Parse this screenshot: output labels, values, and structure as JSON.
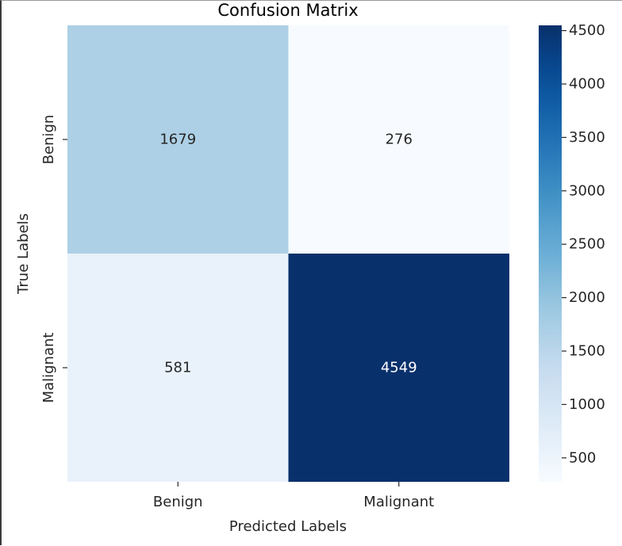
{
  "chart_data": {
    "type": "heatmap",
    "title": "Confusion Matrix",
    "xlabel": "Predicted Labels",
    "ylabel": "True Labels",
    "x_categories": [
      "Benign",
      "Malignant"
    ],
    "y_categories": [
      "Benign",
      "Malignant"
    ],
    "values": [
      [
        1679,
        276
      ],
      [
        581,
        4549
      ]
    ],
    "colormap": "Blues",
    "colorbar": {
      "vmin": 276,
      "vmax": 4549,
      "ticks": [
        500,
        1000,
        1500,
        2000,
        2500,
        3000,
        3500,
        4000,
        4500
      ]
    },
    "colors": {
      "low": "#f7fbff",
      "high": "#08306b",
      "text_dark": "#262626",
      "text_light": "#ffffff"
    }
  }
}
